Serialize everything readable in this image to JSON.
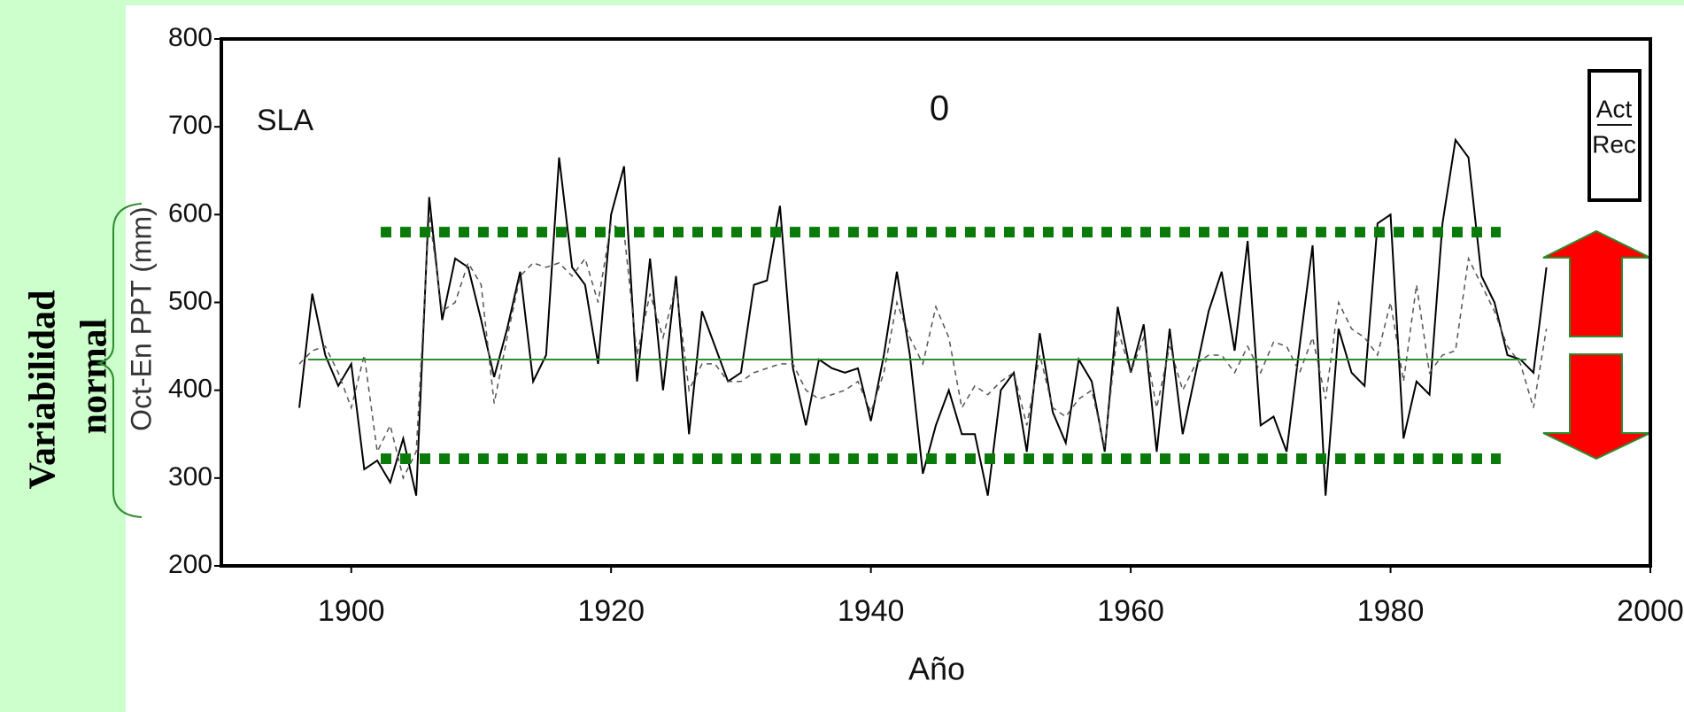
{
  "chart_data": {
    "type": "line",
    "annotations": [
      "SLA",
      "0"
    ],
    "x_label": "Año",
    "y_label": "Oct-En PPT (mm)",
    "x": [
      1896,
      1897,
      1898,
      1899,
      1900,
      1901,
      1902,
      1903,
      1904,
      1905,
      1906,
      1907,
      1908,
      1909,
      1910,
      1911,
      1912,
      1913,
      1914,
      1915,
      1916,
      1917,
      1918,
      1919,
      1920,
      1921,
      1922,
      1923,
      1924,
      1925,
      1926,
      1927,
      1928,
      1929,
      1930,
      1931,
      1932,
      1933,
      1934,
      1935,
      1936,
      1937,
      1938,
      1939,
      1940,
      1941,
      1942,
      1943,
      1944,
      1945,
      1946,
      1947,
      1948,
      1949,
      1950,
      1951,
      1952,
      1953,
      1954,
      1955,
      1956,
      1957,
      1958,
      1959,
      1960,
      1961,
      1962,
      1963,
      1964,
      1965,
      1966,
      1967,
      1968,
      1969,
      1970,
      1971,
      1972,
      1973,
      1974,
      1975,
      1976,
      1977,
      1978,
      1979,
      1980,
      1981,
      1982,
      1983,
      1984,
      1985,
      1986,
      1987,
      1988,
      1989,
      1990,
      1991,
      1992
    ],
    "series": [
      {
        "name": "Act",
        "color": "#000000",
        "dashed": false,
        "values": [
          380,
          510,
          440,
          405,
          430,
          310,
          320,
          295,
          345,
          280,
          620,
          480,
          550,
          540,
          480,
          415,
          470,
          535,
          410,
          440,
          665,
          540,
          520,
          430,
          600,
          655,
          410,
          550,
          400,
          530,
          350,
          490,
          450,
          410,
          420,
          520,
          525,
          610,
          425,
          360,
          435,
          425,
          420,
          425,
          365,
          440,
          535,
          440,
          305,
          360,
          400,
          350,
          350,
          280,
          400,
          420,
          330,
          465,
          375,
          340,
          435,
          410,
          330,
          495,
          420,
          475,
          330,
          470,
          350,
          420,
          490,
          535,
          445,
          570,
          360,
          370,
          330,
          450,
          565,
          280,
          470,
          420,
          405,
          590,
          600,
          345,
          410,
          395,
          590,
          685,
          665,
          530,
          500,
          440,
          435,
          420,
          540
        ]
      },
      {
        "name": "Rec",
        "color": "#555555",
        "dashed": true,
        "values": [
          430,
          445,
          450,
          420,
          380,
          440,
          330,
          360,
          300,
          330,
          600,
          490,
          500,
          545,
          520,
          385,
          460,
          530,
          545,
          540,
          545,
          530,
          550,
          500,
          590,
          580,
          440,
          510,
          460,
          520,
          400,
          430,
          430,
          410,
          410,
          420,
          425,
          430,
          430,
          400,
          390,
          395,
          400,
          410,
          375,
          420,
          500,
          460,
          430,
          495,
          460,
          380,
          405,
          395,
          410,
          420,
          360,
          440,
          380,
          370,
          390,
          400,
          335,
          470,
          420,
          460,
          380,
          450,
          400,
          430,
          440,
          440,
          420,
          450,
          420,
          455,
          450,
          420,
          460,
          390,
          500,
          470,
          460,
          440,
          500,
          410,
          520,
          420,
          440,
          445,
          550,
          520,
          490,
          450,
          430,
          380,
          470
        ]
      }
    ],
    "mean": 435,
    "variability_band": [
      322,
      580
    ],
    "xlim": [
      1890,
      2000
    ],
    "xticks": [
      1900,
      1920,
      1940,
      1960,
      1980,
      2000
    ],
    "ylim": [
      200,
      800
    ],
    "yticks": [
      200,
      300,
      400,
      500,
      600,
      700,
      800
    ]
  },
  "side_label": {
    "lines": [
      "Variabilidad",
      "normal"
    ]
  }
}
